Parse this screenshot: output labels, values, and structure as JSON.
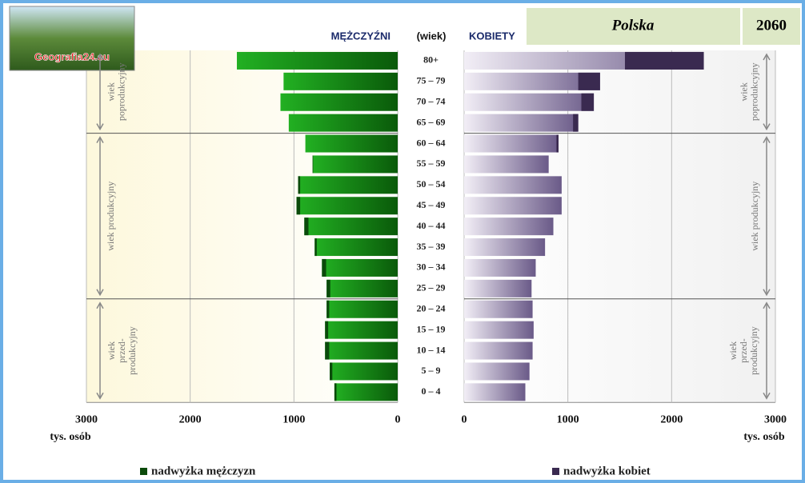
{
  "logo": "Geografia24.eu",
  "chart_data": {
    "type": "pyramid",
    "title": "Polska",
    "year": "2060",
    "left_label": "MĘŻCZYŹNI",
    "center_label": "(wiek)",
    "right_label": "KOBIETY",
    "categories": [
      "80+",
      "75 – 79",
      "70 – 74",
      "65 – 69",
      "60 – 64",
      "55 – 59",
      "50 – 54",
      "45 – 49",
      "40 – 44",
      "35 – 39",
      "30 – 34",
      "25 – 29",
      "20 – 24",
      "15 – 19",
      "10 – 14",
      "5 – 9",
      "0 – 4"
    ],
    "series": [
      {
        "name": "nadwyżka mężczyzn",
        "color": "#0b4a0b",
        "values": [
          1550,
          1100,
          1130,
          1050,
          890,
          820,
          960,
          975,
          900,
          800,
          730,
          685,
          685,
          700,
          700,
          655,
          610
        ]
      },
      {
        "name": "nadwyżka kobiet",
        "color": "#3a2a50",
        "values": [
          2310,
          1310,
          1250,
          1100,
          910,
          815,
          940,
          940,
          860,
          780,
          690,
          650,
          660,
          670,
          660,
          630,
          590
        ]
      }
    ],
    "xlim": [
      0,
      3000
    ],
    "xticks": [
      0,
      1000,
      2000,
      3000
    ],
    "x_unit": "tys. osób",
    "bands": [
      {
        "label": [
          "wiek",
          "poprodukcyjny"
        ]
      },
      {
        "label": [
          "wiek produkcyjny"
        ]
      },
      {
        "label": [
          "wiek",
          "przed-",
          "produkcyjny"
        ]
      }
    ]
  }
}
